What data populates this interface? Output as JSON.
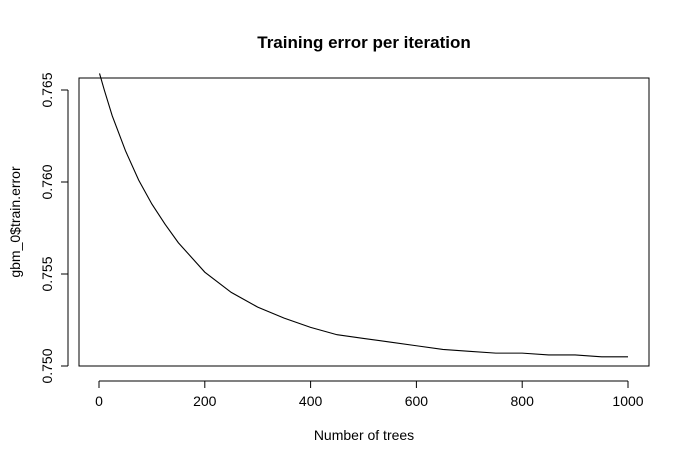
{
  "chart_data": {
    "type": "line",
    "title": "Training error per iteration",
    "xlabel": "Number of trees",
    "ylabel": "gbm_0$train.error",
    "xlim": [
      0,
      1000
    ],
    "ylim": [
      0.75,
      0.765
    ],
    "x_ticks": [
      0,
      200,
      400,
      600,
      800,
      1000
    ],
    "x_tick_labels": [
      "0",
      "200",
      "400",
      "600",
      "800",
      "1000"
    ],
    "y_ticks": [
      0.75,
      0.755,
      0.76,
      0.765
    ],
    "y_tick_labels": [
      "0.750",
      "0.755",
      "0.760",
      "0.765"
    ],
    "grid": false,
    "line_color": "#000000",
    "series": [
      {
        "x": [
          1,
          10,
          25,
          50,
          75,
          100,
          125,
          150,
          200,
          250,
          300,
          350,
          400,
          450,
          500,
          550,
          600,
          650,
          700,
          750,
          800,
          850,
          900,
          950,
          1000
        ],
        "values": [
          0.7659,
          0.765,
          0.7636,
          0.7617,
          0.7601,
          0.7588,
          0.7577,
          0.7567,
          0.7551,
          0.754,
          0.7532,
          0.7526,
          0.7521,
          0.7517,
          0.7515,
          0.7513,
          0.7511,
          0.7509,
          0.7508,
          0.7507,
          0.7507,
          0.7506,
          0.7506,
          0.7505,
          0.7505
        ]
      }
    ]
  }
}
